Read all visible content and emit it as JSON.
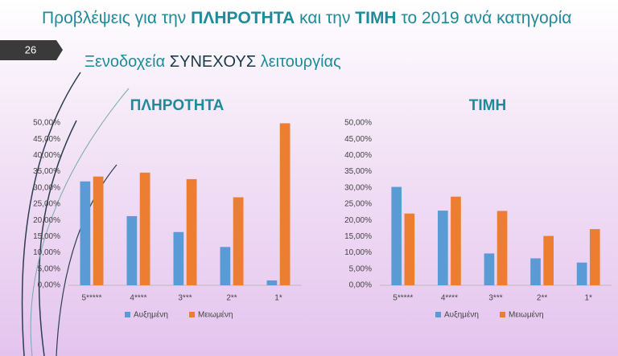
{
  "slide": {
    "title_parts": [
      "Προβλέψεις για την ",
      "ΠΛΗΡΟΤΗΤΑ",
      " και την ",
      "ΤΙΜΗ",
      " το 2019 ανά κατηγορία"
    ],
    "page_number": "26",
    "subtitle_parts": [
      "Ξενοδοχεία ",
      "ΣΥΝΕΧΟΥΣ",
      " λειτουργίας"
    ]
  },
  "chart_data": [
    {
      "type": "bar",
      "title": "ΠΛΗΡΟΤΗΤΑ",
      "categories": [
        "5*****",
        "4****",
        "3***",
        "2**",
        "1*"
      ],
      "series": [
        {
          "name": "Αυξημένη",
          "color": "#5b9bd5",
          "values": [
            32,
            21.3,
            16.4,
            11.8,
            1.5
          ]
        },
        {
          "name": "Μειωμένη",
          "color": "#ed7d31",
          "values": [
            33.5,
            34.7,
            32.7,
            27.1,
            49.9
          ]
        }
      ],
      "ylim": [
        0,
        50
      ],
      "yticks": [
        {
          "value": 0,
          "label": "0,00%"
        },
        {
          "value": 5,
          "label": "5,00%"
        },
        {
          "value": 10,
          "label": "10,00%"
        },
        {
          "value": 15,
          "label": "15,00%"
        },
        {
          "value": 20,
          "label": "20,00%"
        },
        {
          "value": 25,
          "label": "25,00%"
        },
        {
          "value": 30,
          "label": "30,00%"
        },
        {
          "value": 35,
          "label": "35,00%"
        },
        {
          "value": 40,
          "label": "40,00%"
        },
        {
          "value": 45,
          "label": "45,00%"
        },
        {
          "value": 50,
          "label": "50,00%"
        }
      ],
      "grid": false,
      "legend": "bottom"
    },
    {
      "type": "bar",
      "title": "ΤΙΜΗ",
      "categories": [
        "5*****",
        "4****",
        "3***",
        "2**",
        "1*"
      ],
      "series": [
        {
          "name": "Αυξημένη",
          "color": "#5b9bd5",
          "values": [
            30.3,
            23,
            9.8,
            8.3,
            7
          ]
        },
        {
          "name": "Μειωμένη",
          "color": "#ed7d31",
          "values": [
            22.1,
            27.3,
            22.9,
            15.2,
            17.3
          ]
        }
      ],
      "ylim": [
        0,
        50
      ],
      "yticks": [
        {
          "value": 0,
          "label": "0,00%"
        },
        {
          "value": 5,
          "label": "5,00%"
        },
        {
          "value": 10,
          "label": "10,00%"
        },
        {
          "value": 15,
          "label": "15,00%"
        },
        {
          "value": 20,
          "label": "20,00%"
        },
        {
          "value": 25,
          "label": "25,00%"
        },
        {
          "value": 30,
          "label": "30,00%"
        },
        {
          "value": 35,
          "label": "35,00%"
        },
        {
          "value": 40,
          "label": "40,00%"
        },
        {
          "value": 45,
          "label": "45,00%"
        },
        {
          "value": 50,
          "label": "50,00%"
        }
      ],
      "grid": false,
      "legend": "bottom"
    }
  ]
}
